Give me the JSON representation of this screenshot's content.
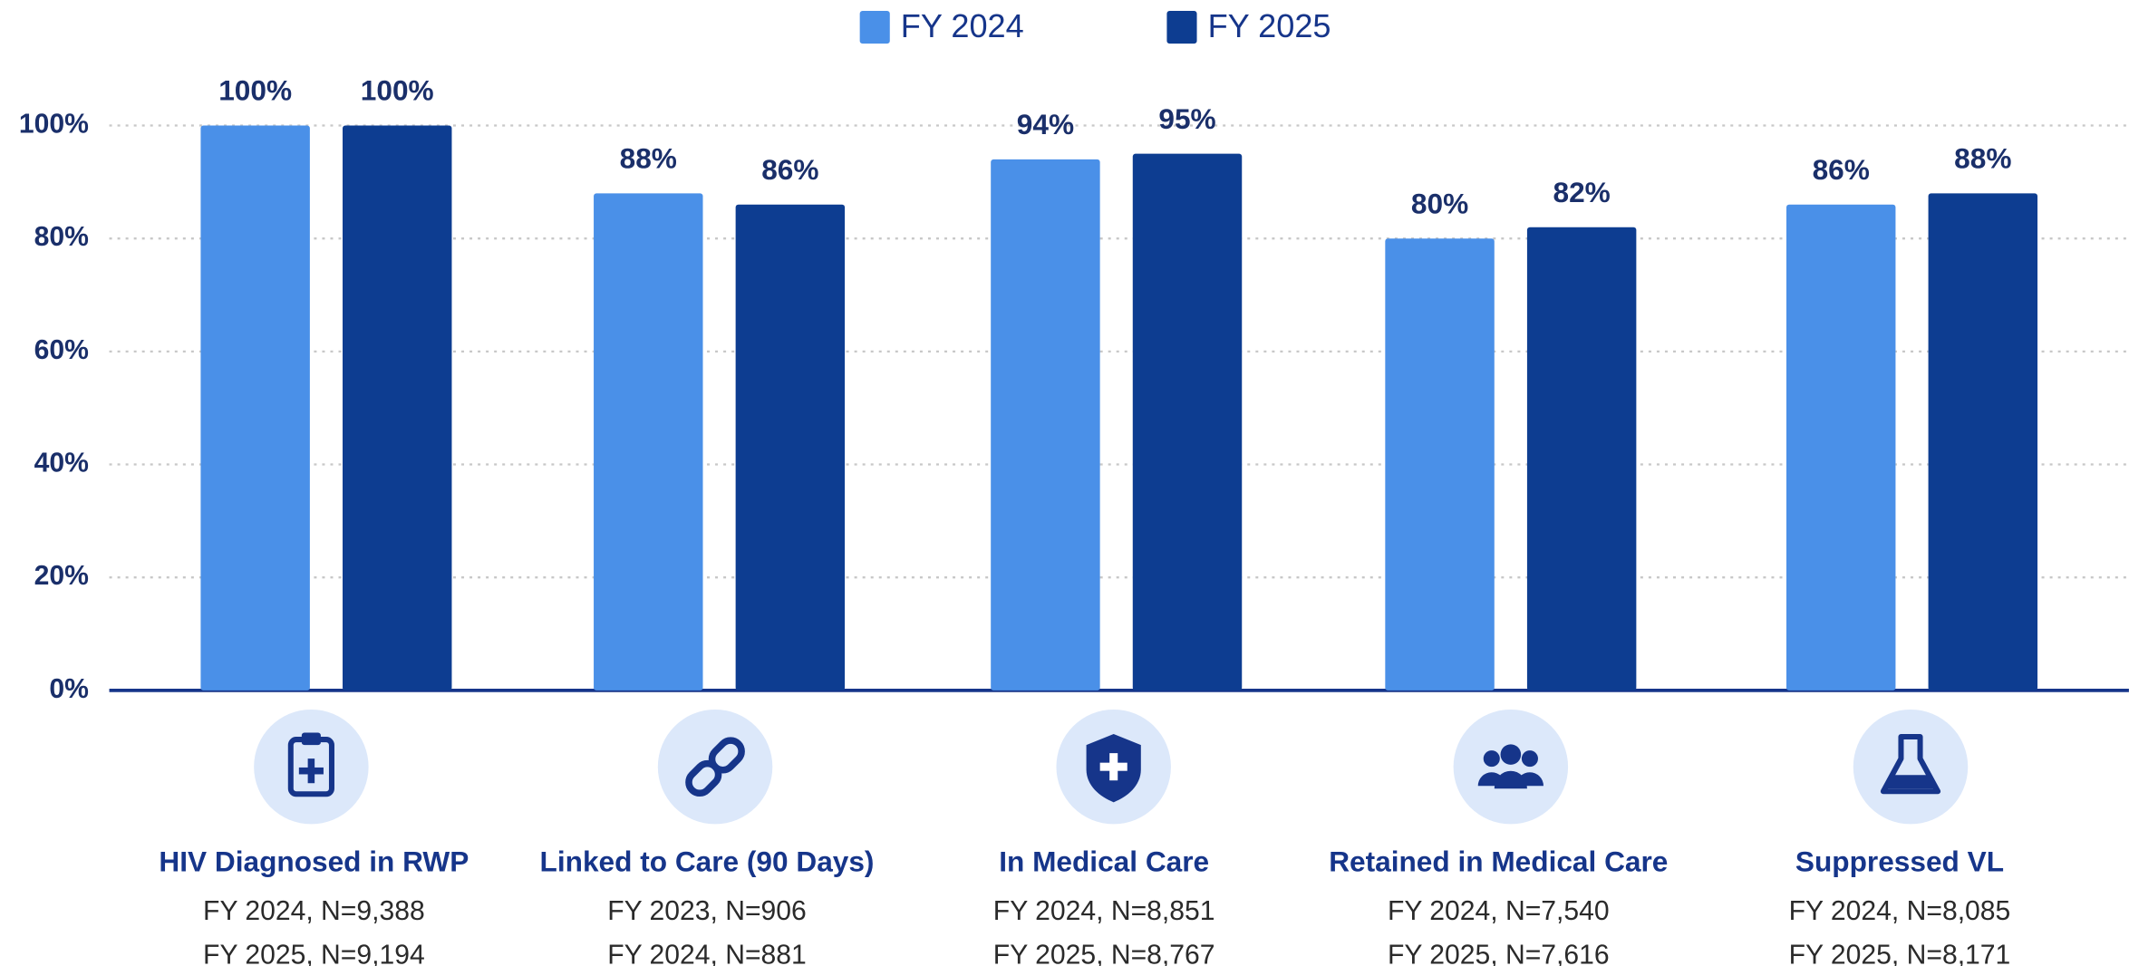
{
  "chart_data": {
    "type": "bar",
    "categories": [
      "HIV Diagnosed in RWP",
      "Linked to Care (90 Days)",
      "In Medical Care",
      "Retained in Medical Care",
      "Suppressed VL"
    ],
    "category_details": [
      [
        "FY 2024, N=9,388",
        "FY 2025, N=9,194"
      ],
      [
        "FY 2023, N=906",
        "FY 2024, N=881"
      ],
      [
        "FY 2024, N=8,851",
        "FY 2025, N=8,767"
      ],
      [
        "FY 2024, N=7,540",
        "FY 2025, N=7,616"
      ],
      [
        "FY 2024, N=8,085",
        "FY 2025, N=8,171"
      ]
    ],
    "series": [
      {
        "name": "FY 2024",
        "color": "#4a90e8",
        "values": [
          100,
          88,
          94,
          80,
          86
        ],
        "value_labels": [
          "100%",
          "88%",
          "94%",
          "80%",
          "86%"
        ]
      },
      {
        "name": "FY 2025",
        "color": "#0d3d91",
        "values": [
          100,
          86,
          95,
          82,
          88
        ],
        "value_labels": [
          "100%",
          "86%",
          "95%",
          "82%",
          "88%"
        ]
      }
    ],
    "ylim": [
      0,
      100
    ],
    "yticks": [
      {
        "value": 0,
        "label": "0%"
      },
      {
        "value": 20,
        "label": "20%"
      },
      {
        "value": 40,
        "label": "40%"
      },
      {
        "value": 60,
        "label": "60%"
      },
      {
        "value": 80,
        "label": "80%"
      },
      {
        "value": 100,
        "label": "100%"
      }
    ],
    "grid": true,
    "legend": "top"
  }
}
